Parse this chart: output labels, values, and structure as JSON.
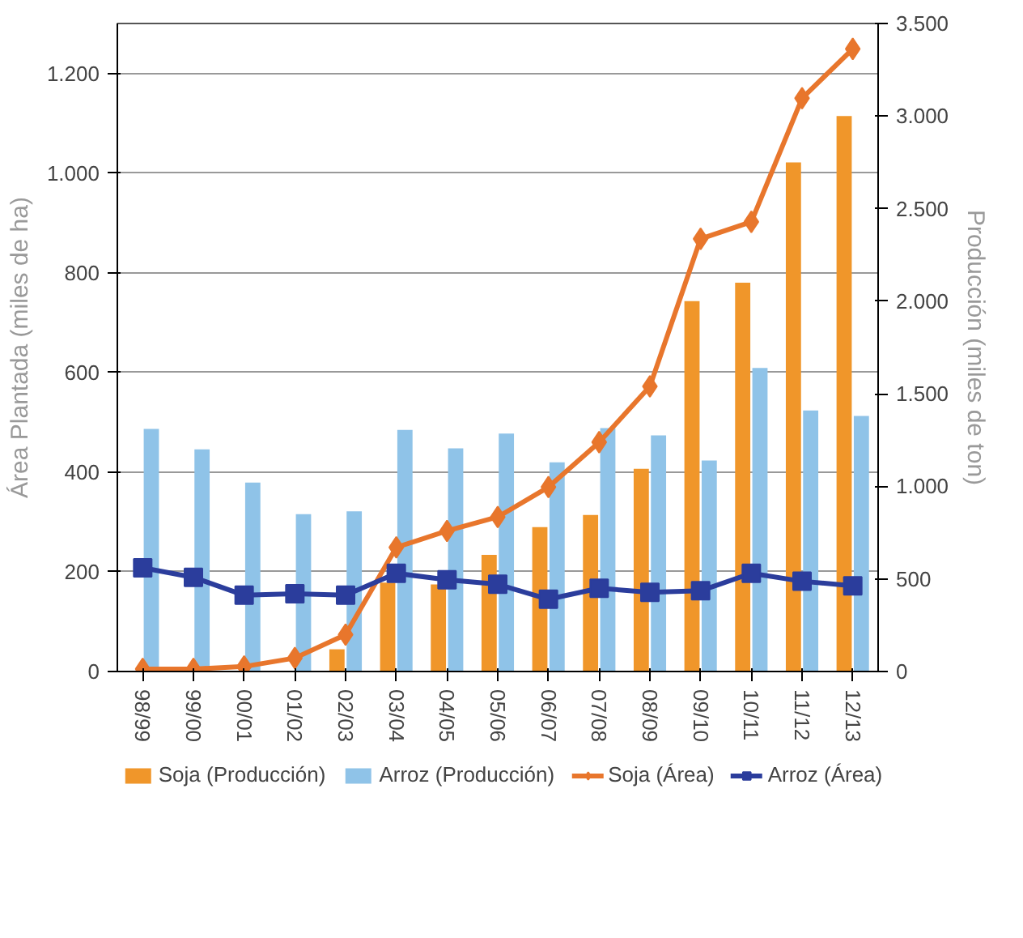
{
  "chart_data": {
    "type": "bar",
    "ylabel": "Área Plantada (miles de ha)",
    "y2label": "Producción (miles de ton)",
    "categories": [
      "98/99",
      "99/00",
      "00/01",
      "01/02",
      "02/03",
      "03/04",
      "04/05",
      "05/06",
      "06/07",
      "07/08",
      "08/09",
      "09/10",
      "10/11",
      "11/12",
      "12/13"
    ],
    "series": [
      {
        "name": "Soja (Producción)",
        "axis": "y2",
        "color": "#f0962a",
        "values": [
          0,
          0,
          0,
          0,
          120,
          480,
          470,
          630,
          780,
          845,
          1095,
          2000,
          2100,
          2750,
          3000
        ]
      },
      {
        "name": "Arroz (Producción)",
        "axis": "y2",
        "color": "#8fc3e8",
        "values": [
          1310,
          1200,
          1020,
          850,
          865,
          1305,
          1205,
          1285,
          1130,
          1315,
          1275,
          1140,
          1640,
          1410,
          1380
        ]
      },
      {
        "name": "Soja (Área)",
        "type": "line",
        "color": "#e8762c",
        "marker": "diamond",
        "values": [
          5,
          5,
          10,
          27,
          74,
          249,
          282,
          310,
          370,
          460,
          572,
          868,
          902,
          1150,
          1249
        ]
      },
      {
        "name": "Arroz (Área)",
        "type": "line",
        "color": "#2b3d9c",
        "marker": "square",
        "values": [
          208,
          189,
          153,
          156,
          153,
          197,
          184,
          175,
          145,
          167,
          159,
          162,
          197,
          181,
          172
        ]
      }
    ],
    "ylim": [
      0,
      1300
    ],
    "yticks": [
      0,
      200,
      400,
      600,
      800,
      {
        "value": 1000,
        "label": "1.000"
      },
      {
        "value": 1200,
        "label": "1.200"
      }
    ],
    "y2lim": [
      0,
      3500
    ],
    "y2ticks": [
      0,
      500,
      {
        "value": 1000,
        "label": "1.000"
      },
      {
        "value": 1500,
        "label": "1.500"
      },
      {
        "value": 2000,
        "label": "2.000"
      },
      {
        "value": 2500,
        "label": "2.500"
      },
      {
        "value": 3000,
        "label": "3.000"
      },
      {
        "value": 3500,
        "label": "3.500"
      }
    ],
    "grid": "y",
    "legend": "bottom"
  }
}
